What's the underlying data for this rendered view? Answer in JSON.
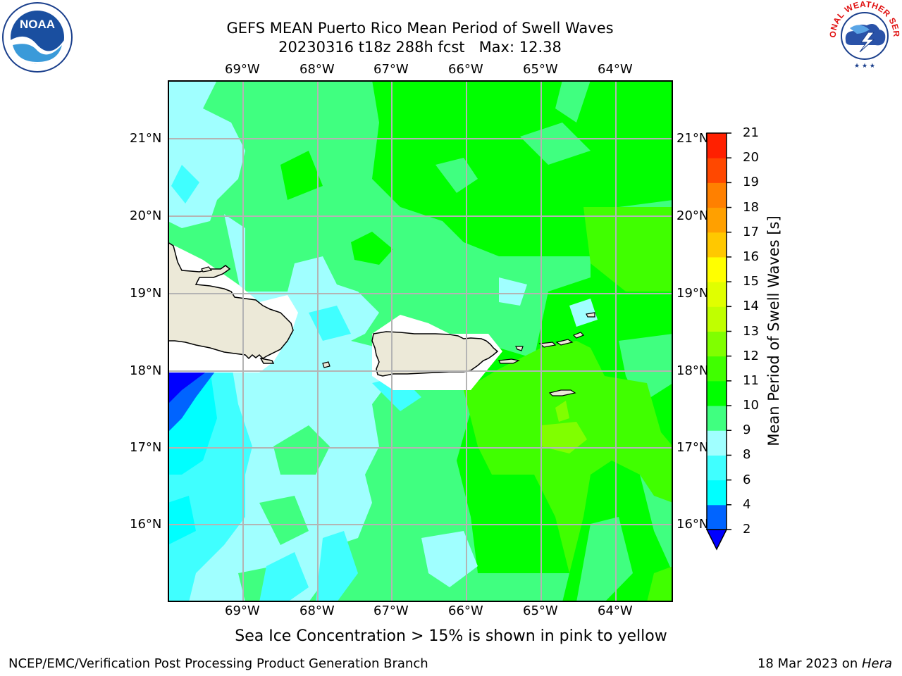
{
  "title": {
    "line1": "GEFS MEAN Puerto Rico Mean Period of Swell Waves",
    "line2": "20230316 t18z 288h fcst   Max: 12.38"
  },
  "logos": {
    "left_icon": "noaa-logo-icon",
    "left_text": "NOAA",
    "right_icon": "national-weather-service-logo-icon",
    "right_text": "NATIONAL WEATHER SERVICE"
  },
  "map": {
    "lon_labels": [
      "69°W",
      "68°W",
      "67°W",
      "66°W",
      "65°W",
      "64°W"
    ],
    "lat_labels": [
      "21°N",
      "20°N",
      "19°N",
      "18°N",
      "17°N",
      "16°N"
    ],
    "land_color": "#ece9d8",
    "grid_color": "#b4b4b4"
  },
  "colorbar": {
    "label": "Mean Period of Swell Waves [s]",
    "ticks": [
      "2",
      "4",
      "6",
      "8",
      "9",
      "10",
      "11",
      "12",
      "13",
      "14",
      "15",
      "16",
      "17",
      "18",
      "19",
      "20",
      "21"
    ],
    "colors": [
      "#0000ff",
      "#0064ff",
      "#00ffff",
      "#40ffff",
      "#a0ffff",
      "#40ff80",
      "#00ff00",
      "#40ff00",
      "#80ff00",
      "#c0ff00",
      "#e0ff00",
      "#ffff00",
      "#ffc800",
      "#ffa000",
      "#ff8000",
      "#ff4800",
      "#ff2000",
      "#ff0000"
    ]
  },
  "note": "Sea Ice Concentration > 15% is shown in pink to yellow",
  "footer": {
    "left": "NCEP/EMC/Verification Post Processing Product Generation Branch",
    "right_prefix": "18 Mar 2023 on ",
    "right_host": "Hera"
  }
}
